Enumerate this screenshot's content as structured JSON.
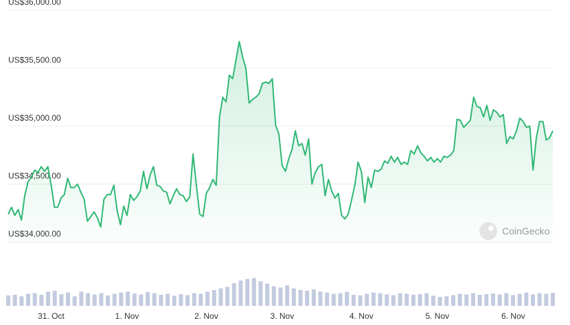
{
  "chart_data": [
    {
      "type": "line",
      "color": "#2fb874",
      "grid": true,
      "watermark": "CoinGecko",
      "ylim": [
        34000,
        36000
      ],
      "yticks": [
        {
          "value": 34000,
          "label": "US$34,000.00"
        },
        {
          "value": 34500,
          "label": "US$34,500.00"
        },
        {
          "value": 35000,
          "label": "US$35,000.00"
        },
        {
          "value": 35500,
          "label": "US$35,500.00"
        },
        {
          "value": 36000,
          "label": "US$36,000.00"
        }
      ],
      "categories": [
        null,
        null,
        null,
        null,
        null,
        null,
        null,
        null,
        null,
        null,
        null,
        null,
        null,
        "31. Oct",
        null,
        null,
        null,
        null,
        null,
        null,
        null,
        null,
        null,
        null,
        null,
        null,
        null,
        null,
        null,
        null,
        null,
        null,
        null,
        null,
        null,
        null,
        "1. Nov",
        null,
        null,
        null,
        null,
        null,
        null,
        null,
        null,
        null,
        null,
        null,
        null,
        null,
        null,
        null,
        null,
        null,
        null,
        null,
        null,
        null,
        null,
        null,
        "2. Nov",
        null,
        null,
        null,
        null,
        null,
        null,
        null,
        null,
        null,
        null,
        null,
        null,
        null,
        null,
        null,
        null,
        null,
        null,
        null,
        null,
        null,
        null,
        "3. Nov",
        null,
        null,
        null,
        null,
        null,
        null,
        null,
        null,
        null,
        null,
        null,
        null,
        null,
        null,
        null,
        null,
        null,
        null,
        null,
        null,
        null,
        null,
        null,
        "4. Nov",
        null,
        null,
        null,
        null,
        null,
        null,
        null,
        null,
        null,
        null,
        null,
        null,
        null,
        null,
        null,
        null,
        null,
        null,
        null,
        null,
        null,
        null,
        "5. Nov",
        null,
        null,
        null,
        null,
        null,
        null,
        null,
        null,
        null,
        null,
        null,
        null,
        null,
        null,
        null,
        null,
        null,
        null,
        null,
        null,
        null,
        null,
        "6. Nov",
        null,
        null,
        null,
        null,
        null,
        null,
        null,
        null,
        null,
        null,
        null,
        null
      ],
      "values": [
        34240,
        34300,
        34230,
        34280,
        34190,
        34400,
        34520,
        34560,
        34620,
        34600,
        34650,
        34610,
        34650,
        34490,
        34300,
        34300,
        34380,
        34410,
        34550,
        34470,
        34470,
        34500,
        34430,
        34370,
        34180,
        34220,
        34260,
        34210,
        34130,
        34370,
        34410,
        34410,
        34490,
        34270,
        34150,
        34310,
        34230,
        34410,
        34360,
        34390,
        34440,
        34610,
        34460,
        34580,
        34650,
        34490,
        34480,
        34440,
        34430,
        34330,
        34400,
        34460,
        34410,
        34400,
        34350,
        34390,
        34760,
        34490,
        34240,
        34220,
        34420,
        34470,
        34540,
        34490,
        35080,
        35250,
        35210,
        35440,
        35410,
        35570,
        35730,
        35600,
        35500,
        35200,
        35230,
        35250,
        35280,
        35370,
        35380,
        35370,
        35410,
        35010,
        34930,
        34660,
        34610,
        34720,
        34800,
        34960,
        34830,
        34850,
        34750,
        34890,
        34500,
        34600,
        34650,
        34670,
        34400,
        34540,
        34440,
        34380,
        34420,
        34230,
        34200,
        34240,
        34360,
        34490,
        34690,
        34610,
        34340,
        34560,
        34470,
        34620,
        34610,
        34630,
        34700,
        34680,
        34740,
        34690,
        34730,
        34670,
        34690,
        34670,
        34790,
        34760,
        34830,
        34770,
        34740,
        34700,
        34730,
        34690,
        34720,
        34690,
        34740,
        34730,
        34750,
        34790,
        35060,
        35050,
        34990,
        35020,
        35050,
        35250,
        35170,
        35160,
        35080,
        35180,
        35050,
        35140,
        35120,
        35080,
        35100,
        34850,
        34910,
        34890,
        34960,
        35070,
        35040,
        34990,
        35000,
        34620,
        34900,
        35040,
        35040,
        34880,
        34900,
        34960
      ]
    },
    {
      "type": "bar",
      "color": "#c3cbe0",
      "ylim": [
        0,
        100
      ],
      "values": [
        33,
        35,
        30,
        38,
        40,
        35,
        45,
        48,
        37,
        42,
        30,
        45,
        40,
        36,
        40,
        33,
        38,
        42,
        45,
        39,
        36,
        44,
        40,
        35,
        38,
        32,
        37,
        34,
        40,
        38,
        45,
        50,
        55,
        60,
        72,
        80,
        85,
        88,
        78,
        70,
        62,
        58,
        65,
        55,
        50,
        48,
        52,
        45,
        42,
        38,
        40,
        44,
        35,
        33,
        38,
        42,
        40,
        36,
        34,
        40,
        38,
        35,
        37,
        40,
        32,
        28,
        30,
        34,
        38,
        36,
        40,
        35,
        37,
        39,
        36,
        40,
        34,
        38,
        42,
        36,
        40,
        38,
        41
      ]
    }
  ]
}
